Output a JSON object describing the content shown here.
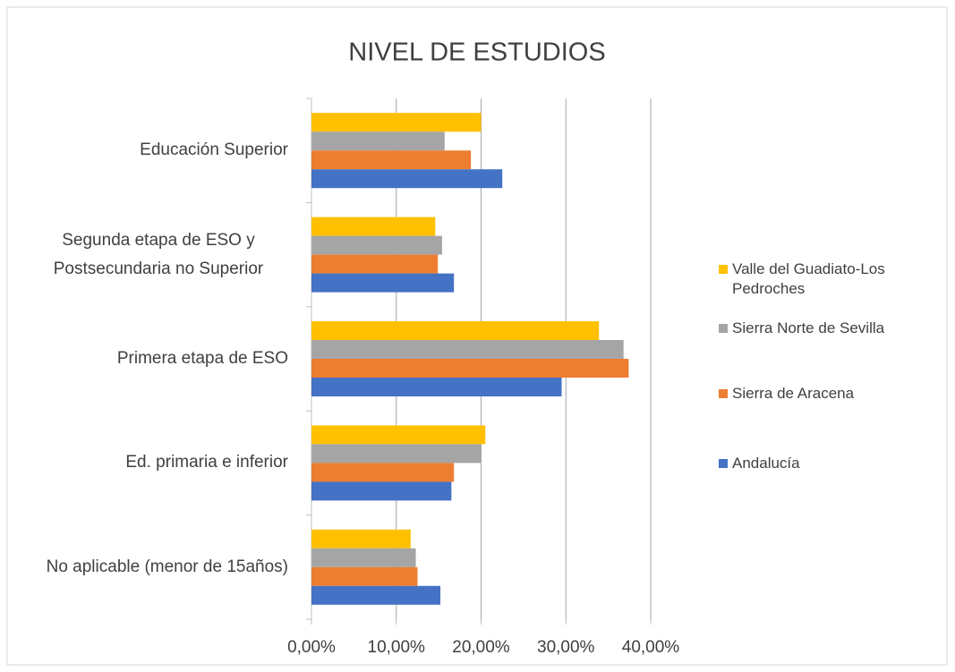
{
  "chart_data": {
    "type": "bar",
    "orientation": "horizontal",
    "title": "NIVEL DE ESTUDIOS",
    "categories": [
      "Educación Superior",
      "Segunda etapa de ESO y Postsecundaria no Superior",
      "Primera etapa de ESO",
      "Ed. primaria e inferior",
      "No aplicable (menor de 15años)"
    ],
    "series": [
      {
        "name": "Valle del Guadiato-Los Pedroches",
        "color": "#ffc000",
        "values": [
          20.0,
          14.6,
          33.9,
          20.5,
          11.7
        ]
      },
      {
        "name": "Sierra Norte de Sevilla",
        "color": "#a5a5a5",
        "values": [
          15.7,
          15.4,
          36.8,
          20.0,
          12.3
        ]
      },
      {
        "name": "Sierra de Aracena",
        "color": "#ed7d31",
        "values": [
          18.8,
          14.9,
          37.4,
          16.8,
          12.5
        ]
      },
      {
        "name": "Andalucía",
        "color": "#4472c4",
        "values": [
          22.5,
          16.8,
          29.5,
          16.5,
          15.2
        ]
      }
    ],
    "xlim": [
      0,
      40
    ],
    "xticks": [
      {
        "value": 0,
        "label": "0,00%"
      },
      {
        "value": 10,
        "label": "10,00%"
      },
      {
        "value": 20,
        "label": "20,00%"
      },
      {
        "value": 30,
        "label": "30,00%"
      },
      {
        "value": 40,
        "label": "40,00%"
      }
    ],
    "grid": true,
    "legend": "right"
  }
}
